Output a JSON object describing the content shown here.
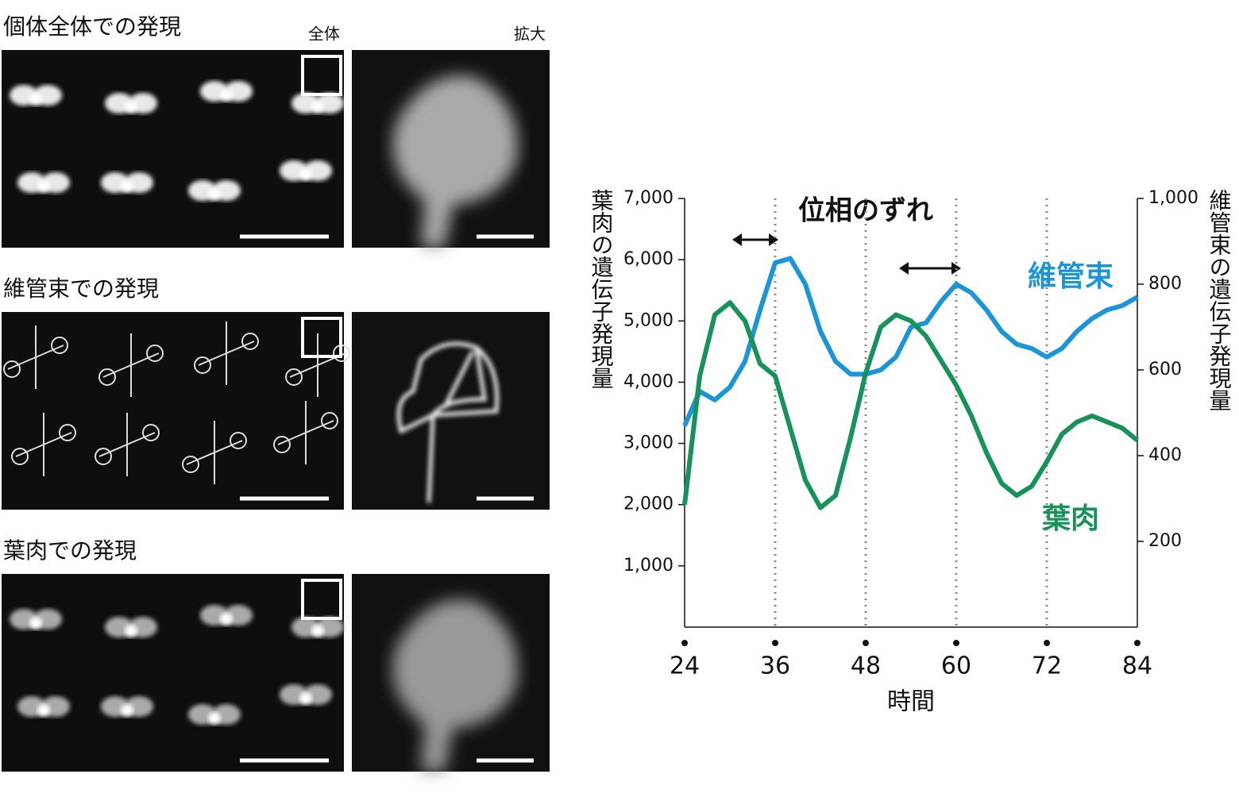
{
  "panels": [
    {
      "title": "個体全体での発現"
    },
    {
      "title": "維管束での発現"
    },
    {
      "title": "葉肉での発現"
    }
  ],
  "column_labels": [
    "全体",
    "拡大"
  ],
  "chart_data": {
    "type": "line",
    "annotation": "位相のずれ",
    "xlabel": "時間",
    "ylabel": "葉肉の遺伝子発現量",
    "y2label": "維管束の遺伝子発現量",
    "x": [
      24,
      26,
      28,
      30,
      32,
      34,
      36,
      38,
      40,
      42,
      44,
      46,
      48,
      50,
      52,
      54,
      56,
      58,
      60,
      62,
      64,
      66,
      68,
      70,
      72,
      74,
      76,
      78,
      80,
      82,
      84
    ],
    "xlim": [
      24,
      84
    ],
    "xticks": [
      24,
      36,
      48,
      60,
      72,
      84
    ],
    "reference_lines": [
      36,
      48,
      60,
      72
    ],
    "ylim": [
      0,
      7000
    ],
    "yticks": [
      {
        "value": 1000,
        "label": "1,000"
      },
      {
        "value": 2000,
        "label": "2,000"
      },
      {
        "value": 3000,
        "label": "3,000"
      },
      {
        "value": 4000,
        "label": "4,000"
      },
      {
        "value": 5000,
        "label": "5,000"
      },
      {
        "value": 6000,
        "label": "6,000"
      },
      {
        "value": 7000,
        "label": "7,000"
      }
    ],
    "y2lim": [
      0,
      1000
    ],
    "y2ticks": [
      200,
      400,
      600,
      800,
      {
        "value": 1000,
        "label": "1,000"
      }
    ],
    "series": [
      {
        "name": "維管束",
        "color": "#1b95d8",
        "axis": "y2",
        "values": [
          470,
          550,
          530,
          560,
          620,
          740,
          850,
          860,
          800,
          690,
          620,
          590,
          590,
          600,
          630,
          700,
          710,
          760,
          800,
          780,
          740,
          690,
          660,
          650,
          630,
          650,
          690,
          720,
          740,
          750,
          770
        ]
      },
      {
        "name": "葉肉",
        "color": "#17935a",
        "values": [
          2000,
          4100,
          5100,
          5300,
          5000,
          4300,
          4100,
          3250,
          2400,
          1950,
          2150,
          3100,
          4150,
          4900,
          5100,
          5000,
          4750,
          4350,
          3950,
          3450,
          2850,
          2350,
          2150,
          2300,
          2700,
          3150,
          3350,
          3450,
          3350,
          3250,
          3050
        ]
      }
    ]
  }
}
